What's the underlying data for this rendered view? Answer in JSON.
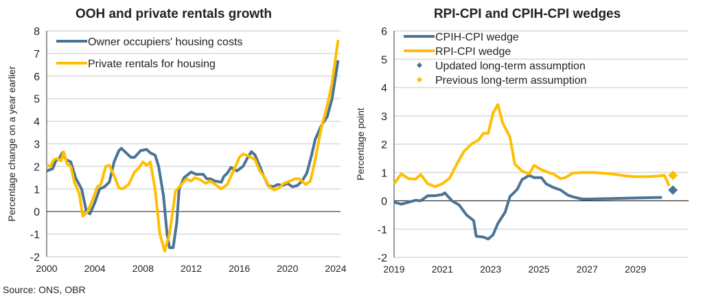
{
  "source": "Source: ONS, OBR",
  "colors": {
    "blue": "#4a7394",
    "yellow": "#ffbf00",
    "grid": "#d9d9d9"
  },
  "chart_data": [
    {
      "type": "line",
      "title": "OOH and private rentals growth",
      "xlabel": "",
      "ylabel": "Percentage change on a year earlier",
      "xlim": [
        2000,
        2024.4
      ],
      "ylim": [
        -2,
        8
      ],
      "yticks": [
        -2,
        -1,
        0,
        1,
        2,
        3,
        4,
        5,
        6,
        7,
        8
      ],
      "xticks": [
        2000,
        2004,
        2008,
        2012,
        2016,
        2020,
        2024
      ],
      "grid": true,
      "legend": "top-left",
      "series": [
        {
          "name": "Owner occupiers' housing costs",
          "color": "#4a7394",
          "x": [
            2000,
            2000.5,
            2000.8,
            2001,
            2001.3,
            2001.6,
            2002,
            2002.4,
            2002.9,
            2003.3,
            2003.6,
            2004,
            2004.4,
            2004.8,
            2005.2,
            2005.6,
            2006,
            2006.2,
            2006.6,
            2007,
            2007.3,
            2007.8,
            2008.3,
            2008.6,
            2009,
            2009.3,
            2009.7,
            2010,
            2010.2,
            2010.5,
            2010.8,
            2011,
            2011.4,
            2012,
            2012.4,
            2013,
            2013.3,
            2013.6,
            2014,
            2014.5,
            2014.7,
            2015,
            2015.3,
            2015.8,
            2016.3,
            2016.7,
            2017,
            2017.3,
            2017.7,
            2018,
            2018.4,
            2018.8,
            2019.2,
            2019.6,
            2020,
            2020.4,
            2020.8,
            2021.2,
            2021.6,
            2022,
            2022.3,
            2022.8,
            2023.3,
            2023.7,
            2024.2
          ],
          "y": [
            1.8,
            1.9,
            2.3,
            2.3,
            2.6,
            2.3,
            2.2,
            1.5,
            1.0,
            0.0,
            -0.1,
            0.4,
            1.0,
            1.1,
            1.3,
            2.2,
            2.7,
            2.8,
            2.6,
            2.4,
            2.4,
            2.7,
            2.75,
            2.6,
            2.5,
            2.0,
            0.7,
            -1.0,
            -1.6,
            -1.6,
            -0.5,
            1.0,
            1.5,
            1.75,
            1.65,
            1.65,
            1.45,
            1.45,
            1.35,
            1.3,
            1.55,
            1.7,
            1.95,
            1.8,
            2.0,
            2.4,
            2.65,
            2.5,
            2.0,
            1.6,
            1.15,
            1.1,
            1.2,
            1.15,
            1.25,
            1.1,
            1.15,
            1.35,
            1.7,
            2.5,
            3.2,
            3.8,
            4.2,
            5.0,
            6.7
          ]
        },
        {
          "name": "Private rentals for housing",
          "color": "#ffbf00",
          "x": [
            2000,
            2000.3,
            2000.6,
            2000.9,
            2001.2,
            2001.4,
            2001.7,
            2002,
            2002.3,
            2002.7,
            2003,
            2003.4,
            2003.8,
            2004.2,
            2004.5,
            2004.9,
            2005.2,
            2005.6,
            2006,
            2006.3,
            2006.8,
            2007.3,
            2007.6,
            2008,
            2008.3,
            2008.6,
            2009,
            2009.4,
            2009.8,
            2010.2,
            2010.7,
            2011.2,
            2011.6,
            2012,
            2012.3,
            2012.8,
            2013.2,
            2013.6,
            2014,
            2014.5,
            2015,
            2015.5,
            2016,
            2016.3,
            2016.8,
            2017.3,
            2017.7,
            2018,
            2018.5,
            2018.9,
            2019.3,
            2019.7,
            2020.2,
            2020.6,
            2021,
            2021.5,
            2021.9,
            2022.3,
            2022.8,
            2023.3,
            2023.7,
            2024.2
          ],
          "y": [
            2.05,
            2.0,
            2.3,
            2.35,
            2.25,
            2.65,
            2.1,
            2.0,
            1.3,
            0.8,
            -0.2,
            0.0,
            0.5,
            1.1,
            1.2,
            2.0,
            2.05,
            1.6,
            1.05,
            1.0,
            1.2,
            1.75,
            1.9,
            2.2,
            2.05,
            2.2,
            1.0,
            -1.0,
            -1.75,
            -1.0,
            0.9,
            1.2,
            1.45,
            1.35,
            1.5,
            1.4,
            1.25,
            1.35,
            1.2,
            1.0,
            1.2,
            1.8,
            2.4,
            2.55,
            2.45,
            2.3,
            1.8,
            1.6,
            1.1,
            0.95,
            1.05,
            1.25,
            1.35,
            1.45,
            1.45,
            1.2,
            1.35,
            2.3,
            3.7,
            4.7,
            5.7,
            7.6
          ]
        }
      ]
    },
    {
      "type": "line",
      "title": "RPI-CPI and CPIH-CPI wedges",
      "xlabel": "",
      "ylabel": "Percentage point",
      "xlim": [
        2019,
        2031.2
      ],
      "ylim": [
        -2,
        6
      ],
      "yticks": [
        -2,
        -1,
        0,
        1,
        2,
        3,
        4,
        5,
        6
      ],
      "xticks": [
        2019,
        2021,
        2023,
        2025,
        2027,
        2029
      ],
      "grid": true,
      "legend": "top-left",
      "series": [
        {
          "name": "CPIH-CPI wedge",
          "color": "#4a7394",
          "x": [
            2019,
            2019.3,
            2019.6,
            2019.9,
            2020.1,
            2020.4,
            2020.7,
            2021,
            2021.1,
            2021.4,
            2021.7,
            2022,
            2022.3,
            2022.4,
            2022.7,
            2022.9,
            2023.1,
            2023.3,
            2023.6,
            2023.8,
            2024.1,
            2024.3,
            2024.6,
            2024.8,
            2025.1,
            2025.3,
            2025.6,
            2025.9,
            2026.2,
            2026.5,
            2026.8,
            2027,
            2028,
            2029,
            2030,
            2030.1
          ],
          "y": [
            -0.05,
            -0.12,
            -0.05,
            0.02,
            0.0,
            0.18,
            0.18,
            0.22,
            0.28,
            0.0,
            -0.15,
            -0.5,
            -0.7,
            -1.25,
            -1.28,
            -1.35,
            -1.2,
            -0.8,
            -0.4,
            0.15,
            0.4,
            0.75,
            0.9,
            0.82,
            0.82,
            0.6,
            0.47,
            0.38,
            0.2,
            0.12,
            0.06,
            0.06,
            0.08,
            0.1,
            0.12,
            0.12
          ]
        },
        {
          "name": "RPI-CPI wedge",
          "color": "#ffbf00",
          "x": [
            2019,
            2019.3,
            2019.6,
            2019.9,
            2020.1,
            2020.4,
            2020.7,
            2021,
            2021.3,
            2021.6,
            2021.9,
            2022.2,
            2022.5,
            2022.7,
            2022.9,
            2023.1,
            2023.3,
            2023.5,
            2023.8,
            2024,
            2024.3,
            2024.6,
            2024.8,
            2025.1,
            2025.4,
            2025.6,
            2025.9,
            2026.1,
            2026.4,
            2026.8,
            2027.3,
            2028,
            2028.6,
            2029,
            2029.5,
            2030,
            2030.2,
            2030.4
          ],
          "y": [
            0.6,
            0.95,
            0.78,
            0.77,
            0.93,
            0.6,
            0.5,
            0.6,
            0.8,
            1.3,
            1.75,
            2.0,
            2.15,
            2.38,
            2.38,
            3.1,
            3.4,
            2.75,
            2.25,
            1.3,
            1.05,
            0.95,
            1.25,
            1.1,
            1.0,
            0.95,
            0.78,
            0.82,
            0.98,
            1.0,
            1.0,
            0.95,
            0.88,
            0.85,
            0.85,
            0.88,
            0.9,
            0.52
          ]
        }
      ],
      "points": [
        {
          "name": "Updated long-term assumption",
          "color": "#4a7394",
          "x": 2030.55,
          "y": 0.38
        },
        {
          "name": "Previous long-term assumption",
          "color": "#ffbf00",
          "x": 2030.55,
          "y": 0.9
        }
      ]
    }
  ]
}
